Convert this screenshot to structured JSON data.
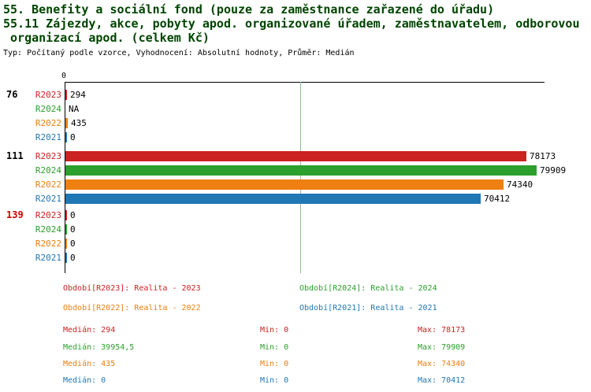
{
  "header": {
    "line1": "55. Benefity a sociální fond (pouze za zaměstnance zařazené do úřadu)",
    "line2": "55.11 Zájezdy, akce, pobyty apod. organizované úřadem, zaměstnavatelem, odborovou",
    "line3": " organizací apod. (celkem Kč)",
    "meta": "Typ: Počítaný podle vzorce, Vyhodnocení: Absolutní hodnoty, Průměr: Medián"
  },
  "chart_data": {
    "type": "bar",
    "orientation": "horizontal",
    "axis_zero_label": "0",
    "x_range": [
      0,
      79909
    ],
    "reference_line_value": 39954.5,
    "reference_line_color": "#8fbc8f",
    "series_colors": {
      "R2023": "#cc2222",
      "R2024": "#2ca02c",
      "R2022": "#ee7f10",
      "R2021": "#1f77b4"
    },
    "groups": [
      {
        "label": "76",
        "label_color": "#000000",
        "bars": [
          {
            "series": "R2023",
            "value": 294,
            "display": "294"
          },
          {
            "series": "R2024",
            "value": null,
            "display": "NA"
          },
          {
            "series": "R2022",
            "value": 435,
            "display": "435"
          },
          {
            "series": "R2021",
            "value": 0,
            "display": "0"
          }
        ]
      },
      {
        "label": "111",
        "label_color": "#000000",
        "bars": [
          {
            "series": "R2023",
            "value": 78173,
            "display": "78173"
          },
          {
            "series": "R2024",
            "value": 79909,
            "display": "79909"
          },
          {
            "series": "R2022",
            "value": 74340,
            "display": "74340"
          },
          {
            "series": "R2021",
            "value": 70412,
            "display": "70412"
          }
        ]
      },
      {
        "label": "139",
        "label_color": "#cc0000",
        "bars": [
          {
            "series": "R2023",
            "value": 0,
            "display": "0"
          },
          {
            "series": "R2024",
            "value": 0,
            "display": "0"
          },
          {
            "series": "R2022",
            "value": 0,
            "display": "0"
          },
          {
            "series": "R2021",
            "value": 0,
            "display": "0"
          }
        ]
      }
    ]
  },
  "legend": [
    {
      "series": "R2023",
      "text": "Období[R2023]: Realita - 2023"
    },
    {
      "series": "R2024",
      "text": "Období[R2024]: Realita - 2024"
    },
    {
      "series": "R2022",
      "text": "Období[R2022]: Realita - 2022"
    },
    {
      "series": "R2021",
      "text": "Období[R2021]: Realita - 2021"
    }
  ],
  "stats": {
    "labels": {
      "median": "Medián",
      "min": "Min",
      "max": "Max"
    },
    "rows": [
      {
        "series": "R2023",
        "median": "294",
        "min": "0",
        "max": "78173"
      },
      {
        "series": "R2024",
        "median": "39954,5",
        "min": "0",
        "max": "79909"
      },
      {
        "series": "R2022",
        "median": "435",
        "min": "0",
        "max": "74340"
      },
      {
        "series": "R2021",
        "median": "0",
        "min": "0",
        "max": "70412"
      }
    ]
  }
}
